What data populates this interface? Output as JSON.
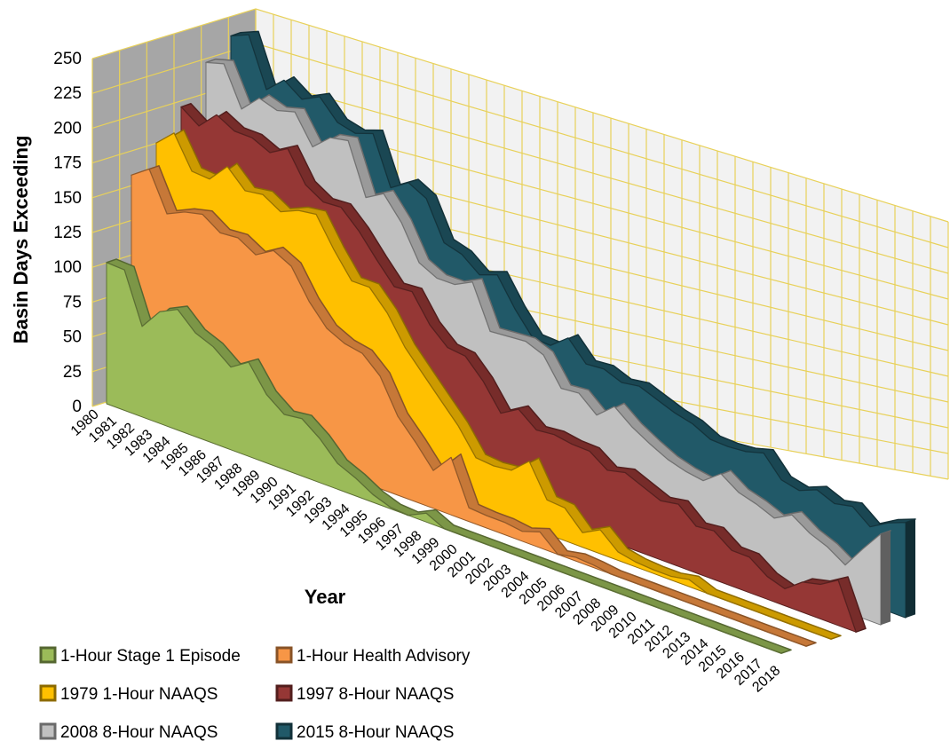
{
  "chart_data": {
    "type": "area",
    "view": "3d-stacked-depth",
    "xlabel": "Year",
    "ylabel": "Basin Days Exceeding",
    "ylim": [
      0,
      250
    ],
    "yticks": [
      0,
      25,
      50,
      75,
      100,
      125,
      150,
      175,
      200,
      225,
      250
    ],
    "gridlines": true,
    "legend_position": "bottom-left",
    "categories": [
      "1980",
      "1981",
      "1982",
      "1983",
      "1984",
      "1985",
      "1986",
      "1987",
      "1988",
      "1989",
      "1990",
      "1991",
      "1992",
      "1993",
      "1994",
      "1995",
      "1996",
      "1997",
      "1998",
      "1999",
      "2000",
      "2001",
      "2002",
      "2003",
      "2004",
      "2005",
      "2006",
      "2007",
      "2008",
      "2009",
      "2010",
      "2011",
      "2012",
      "2013",
      "2014",
      "2015",
      "2016",
      "2017",
      "2018"
    ],
    "series": [
      {
        "name": "1-Hour Stage 1 Episode",
        "color": "#9BBB59",
        "values": [
          102,
          102,
          66,
          82,
          89,
          77,
          72,
          62,
          71,
          52,
          42,
          44,
          34,
          20,
          14,
          6,
          1,
          0,
          7,
          0,
          0,
          0,
          0,
          0,
          0,
          0,
          0,
          0,
          0,
          0,
          0,
          0,
          0,
          0,
          0,
          0,
          0,
          0,
          0
        ]
      },
      {
        "name": "1-Hour Health Advisory",
        "color": "#F79646",
        "values": [
          160,
          170,
          143,
          150,
          154,
          146,
          148,
          141,
          150,
          144,
          123,
          108,
          102,
          100,
          88,
          62,
          47,
          30,
          46,
          11,
          10,
          10,
          8,
          13,
          0,
          3,
          2,
          0,
          0,
          0,
          0,
          0,
          0,
          0,
          0,
          0,
          0,
          0,
          0
        ]
      },
      {
        "name": "1979 1-Hour NAAQS",
        "color": "#FFC000",
        "values": [
          178,
          191,
          169,
          169,
          184,
          172,
          175,
          168,
          175,
          178,
          157,
          139,
          140,
          126,
          105,
          90,
          75,
          60,
          40,
          39,
          41,
          54,
          28,
          27,
          12,
          20,
          7,
          4,
          3,
          3,
          6,
          0,
          0,
          0,
          0,
          0,
          0,
          0,
          0
        ]
      },
      {
        "name": "1997 8-Hour NAAQS",
        "color": "#953735",
        "values": [
          199,
          191,
          205,
          199,
          200,
          195,
          204,
          183,
          176,
          178,
          166,
          150,
          135,
          137,
          117,
          105,
          104,
          90,
          70,
          79,
          68,
          70,
          68,
          68,
          58,
          62,
          56,
          50,
          53,
          40,
          42,
          31,
          31,
          20,
          15,
          27,
          31,
          41,
          0
        ]
      },
      {
        "name": "2008 8-Hour NAAQS",
        "color": "#C0C0C0",
        "values": [
          226,
          231,
          204,
          218,
          215,
          220,
          200,
          213,
          217,
          180,
          189,
          173,
          148,
          142,
          143,
          151,
          118,
          120,
          122,
          117,
          96,
          98,
          86,
          99,
          88,
          80,
          73,
          69,
          67,
          79,
          69,
          65,
          59,
          68,
          58,
          52,
          42,
          63,
          83
        ]
      },
      {
        "name": "2015 8-Hour NAAQS",
        "color": "#215968",
        "values": [
          240,
          247,
          213,
          226,
          218,
          226,
          213,
          211,
          217,
          182,
          192,
          186,
          158,
          155,
          145,
          151,
          130,
          113,
          113,
          125,
          110,
          112,
          107,
          110,
          105,
          100,
          97,
          90,
          90,
          92,
          97,
          80,
          77,
          84,
          78,
          82,
          70,
          80,
          87
        ]
      }
    ]
  },
  "legend": {
    "items": [
      {
        "label": "1-Hour Stage 1 Episode",
        "color": "#9BBB59"
      },
      {
        "label": "1-Hour Health Advisory",
        "color": "#F79646"
      },
      {
        "label": "1979 1-Hour NAAQS",
        "color": "#FFC000"
      },
      {
        "label": "1997 8-Hour NAAQS",
        "color": "#953735"
      },
      {
        "label": "2008 8-Hour NAAQS",
        "color": "#C0C0C0"
      },
      {
        "label": "2015 8-Hour NAAQS",
        "color": "#215968"
      }
    ]
  },
  "colors": {
    "grid_floor": "#E8D15A",
    "wall_back": "#F2F2F2",
    "wall_side": "#A6A6A6",
    "wall_outline": "#BFA6D9"
  }
}
